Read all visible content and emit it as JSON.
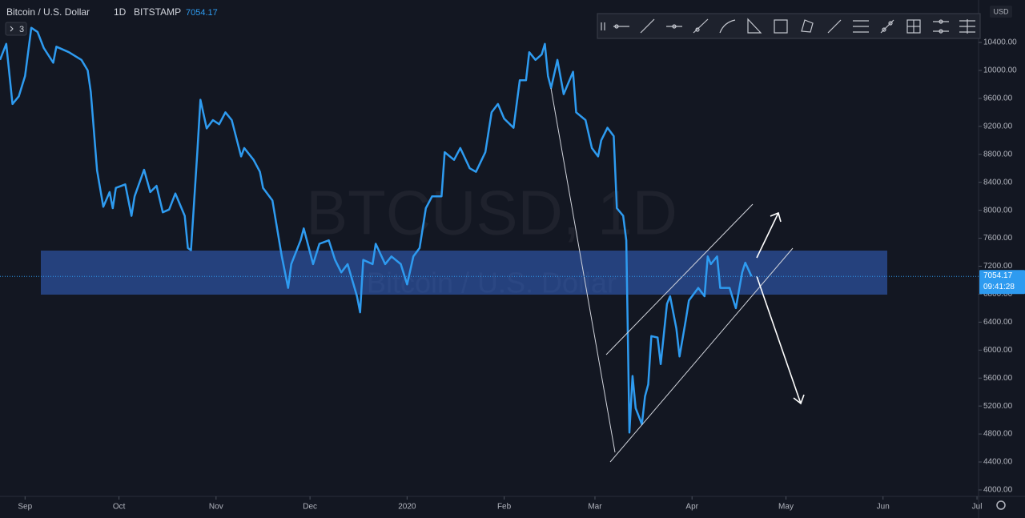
{
  "header": {
    "symbol": "Bitcoin / U.S. Dollar",
    "interval": "1D",
    "exchange": "BITSTAMP",
    "badge": "3",
    "watermark": "BTCUSD, 1D",
    "currency": "USD",
    "countdown": "09:41:28"
  },
  "chart_data": {
    "type": "line",
    "color": "#2e9bf0",
    "last_price": 7054.17,
    "x": [
      0,
      2,
      4,
      6,
      8,
      10,
      12,
      14,
      17,
      18,
      22,
      26,
      28,
      29,
      31,
      33,
      35,
      36,
      37,
      40,
      42,
      43,
      46,
      48,
      50,
      52,
      54,
      56,
      59,
      60,
      61,
      63,
      64,
      66,
      68,
      70,
      72,
      74,
      77,
      78,
      81,
      83,
      84,
      87,
      90,
      92,
      93,
      96,
      97,
      100,
      102,
      105,
      107,
      109,
      111,
      114,
      115,
      116,
      119,
      120,
      123,
      125,
      128,
      130,
      132,
      134,
      136,
      138,
      141,
      142,
      145,
      147,
      150,
      152,
      155,
      157,
      159,
      161,
      164,
      166,
      168,
      169,
      171,
      173,
      174,
      175,
      176,
      178,
      180,
      183,
      184,
      187,
      189,
      191,
      192,
      194,
      196,
      197,
      199,
      200,
      201,
      202,
      203,
      205,
      206,
      207,
      208,
      210,
      211,
      213,
      214,
      216,
      217,
      219,
      220,
      223,
      225,
      226,
      227,
      229,
      230,
      233,
      235,
      237,
      238,
      240
    ],
    "values": [
      10150,
      10380,
      9520,
      9630,
      9920,
      10610,
      10550,
      10320,
      10110,
      10340,
      10260,
      10150,
      10000,
      9690,
      8570,
      8050,
      8260,
      8030,
      8320,
      8370,
      7920,
      8200,
      8580,
      8260,
      8350,
      7970,
      8010,
      8240,
      7920,
      7460,
      7430,
      8830,
      9580,
      9170,
      9290,
      9230,
      9400,
      9290,
      8770,
      8890,
      8720,
      8550,
      8320,
      8140,
      7340,
      6890,
      7230,
      7570,
      7740,
      7230,
      7520,
      7570,
      7290,
      7110,
      7230,
      6770,
      6540,
      7290,
      7230,
      7520,
      7230,
      7340,
      7230,
      6940,
      7340,
      7460,
      8030,
      8200,
      8200,
      8830,
      8720,
      8890,
      8600,
      8550,
      8830,
      9400,
      9520,
      9310,
      9180,
      9860,
      9860,
      10260,
      10150,
      10230,
      10380,
      9920,
      9750,
      10150,
      9660,
      9980,
      9400,
      9290,
      8890,
      8770,
      9000,
      9180,
      9060,
      8030,
      7920,
      7570,
      4820,
      5630,
      5170,
      4940,
      5340,
      5510,
      6200,
      6180,
      5800,
      6660,
      6770,
      6310,
      5910,
      6430,
      6710,
      6890,
      6770,
      7340,
      7230,
      7340,
      6890,
      6890,
      6600,
      7110,
      7250,
      7054.17
    ],
    "xlim": [
      0,
      312.5
    ],
    "ylim": [
      3908,
      11007
    ],
    "xticks": [
      {
        "value": 8,
        "label": "Sep"
      },
      {
        "value": 38,
        "label": "Oct"
      },
      {
        "value": 69,
        "label": "Nov"
      },
      {
        "value": 99,
        "label": "Dec"
      },
      {
        "value": 130,
        "label": "2020"
      },
      {
        "value": 161,
        "label": "Feb"
      },
      {
        "value": 190,
        "label": "Mar"
      },
      {
        "value": 221,
        "label": "Apr"
      },
      {
        "value": 251,
        "label": "May"
      },
      {
        "value": 282,
        "label": "Jun"
      },
      {
        "value": 312,
        "label": "Jul"
      }
    ],
    "yticks": [
      {
        "value": 4000,
        "label": "4000.00"
      },
      {
        "value": 4400,
        "label": "4400.00"
      },
      {
        "value": 4800,
        "label": "4800.00"
      },
      {
        "value": 5200,
        "label": "5200.00"
      },
      {
        "value": 5600,
        "label": "5600.00"
      },
      {
        "value": 6000,
        "label": "6000.00"
      },
      {
        "value": 6400,
        "label": "6400.00"
      },
      {
        "value": 6800,
        "label": "6800.00"
      },
      {
        "value": 7200,
        "label": "7200.00"
      },
      {
        "value": 7600,
        "label": "7600.00"
      },
      {
        "value": 8000,
        "label": "8000.00"
      },
      {
        "value": 8400,
        "label": "8400.00"
      },
      {
        "value": 8800,
        "label": "8800.00"
      },
      {
        "value": 9200,
        "label": "9200.00"
      },
      {
        "value": 9600,
        "label": "9600.00"
      },
      {
        "value": 10000,
        "label": "10000.00"
      },
      {
        "value": 10400,
        "label": "10400.00"
      }
    ]
  }
}
